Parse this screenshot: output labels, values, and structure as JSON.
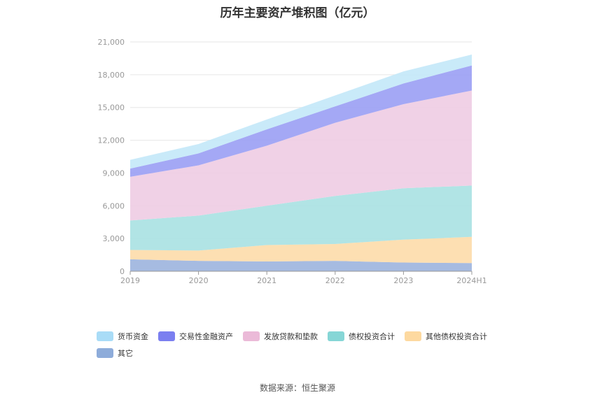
{
  "title": "历年主要资产堆积图（亿元）",
  "source": "数据来源：恒生聚源",
  "chart_data": {
    "type": "area",
    "stacked": true,
    "categories": [
      "2019",
      "2020",
      "2021",
      "2022",
      "2023",
      "2024H1"
    ],
    "ylim": [
      0,
      21000
    ],
    "yticks": [
      0,
      3000,
      6000,
      9000,
      12000,
      15000,
      18000,
      21000
    ],
    "ytick_labels": [
      "0",
      "3,000",
      "6,000",
      "9,000",
      "12,000",
      "15,000",
      "18,000",
      "21,000"
    ],
    "grid": true,
    "legend_position": "bottom",
    "series": [
      {
        "name": "其它",
        "color": "#9cb4de",
        "values": [
          1100,
          950,
          900,
          950,
          800,
          750
        ]
      },
      {
        "name": "其他债权投资合计",
        "color": "#fddcaa",
        "values": [
          850,
          950,
          1500,
          1550,
          2100,
          2400
        ]
      },
      {
        "name": "债权投资合计",
        "color": "#a9e1e2",
        "values": [
          2700,
          3200,
          3600,
          4400,
          4700,
          4700
        ]
      },
      {
        "name": "发放贷款和垫款",
        "color": "#eecce3",
        "values": [
          4000,
          4600,
          5500,
          6700,
          7700,
          8700
        ]
      },
      {
        "name": "交易性金融资产",
        "color": "#9a9ef4",
        "values": [
          750,
          1100,
          1500,
          1500,
          1900,
          2300
        ]
      },
      {
        "name": "货币资金",
        "color": "#c3e8f8",
        "values": [
          800,
          850,
          900,
          1000,
          1100,
          1000
        ]
      }
    ],
    "legend_order": [
      "货币资金",
      "交易性金融资产",
      "发放贷款和垫款",
      "债权投资合计",
      "其他债权投资合计",
      "其它"
    ],
    "legend_colors": {
      "货币资金": "#a9dcf7",
      "交易性金融资产": "#7b7ff0",
      "发放贷款和垫款": "#ebbad8",
      "债权投资合计": "#86d6d6",
      "其他债权投资合计": "#fdd9a0",
      "其它": "#8eacda"
    }
  }
}
